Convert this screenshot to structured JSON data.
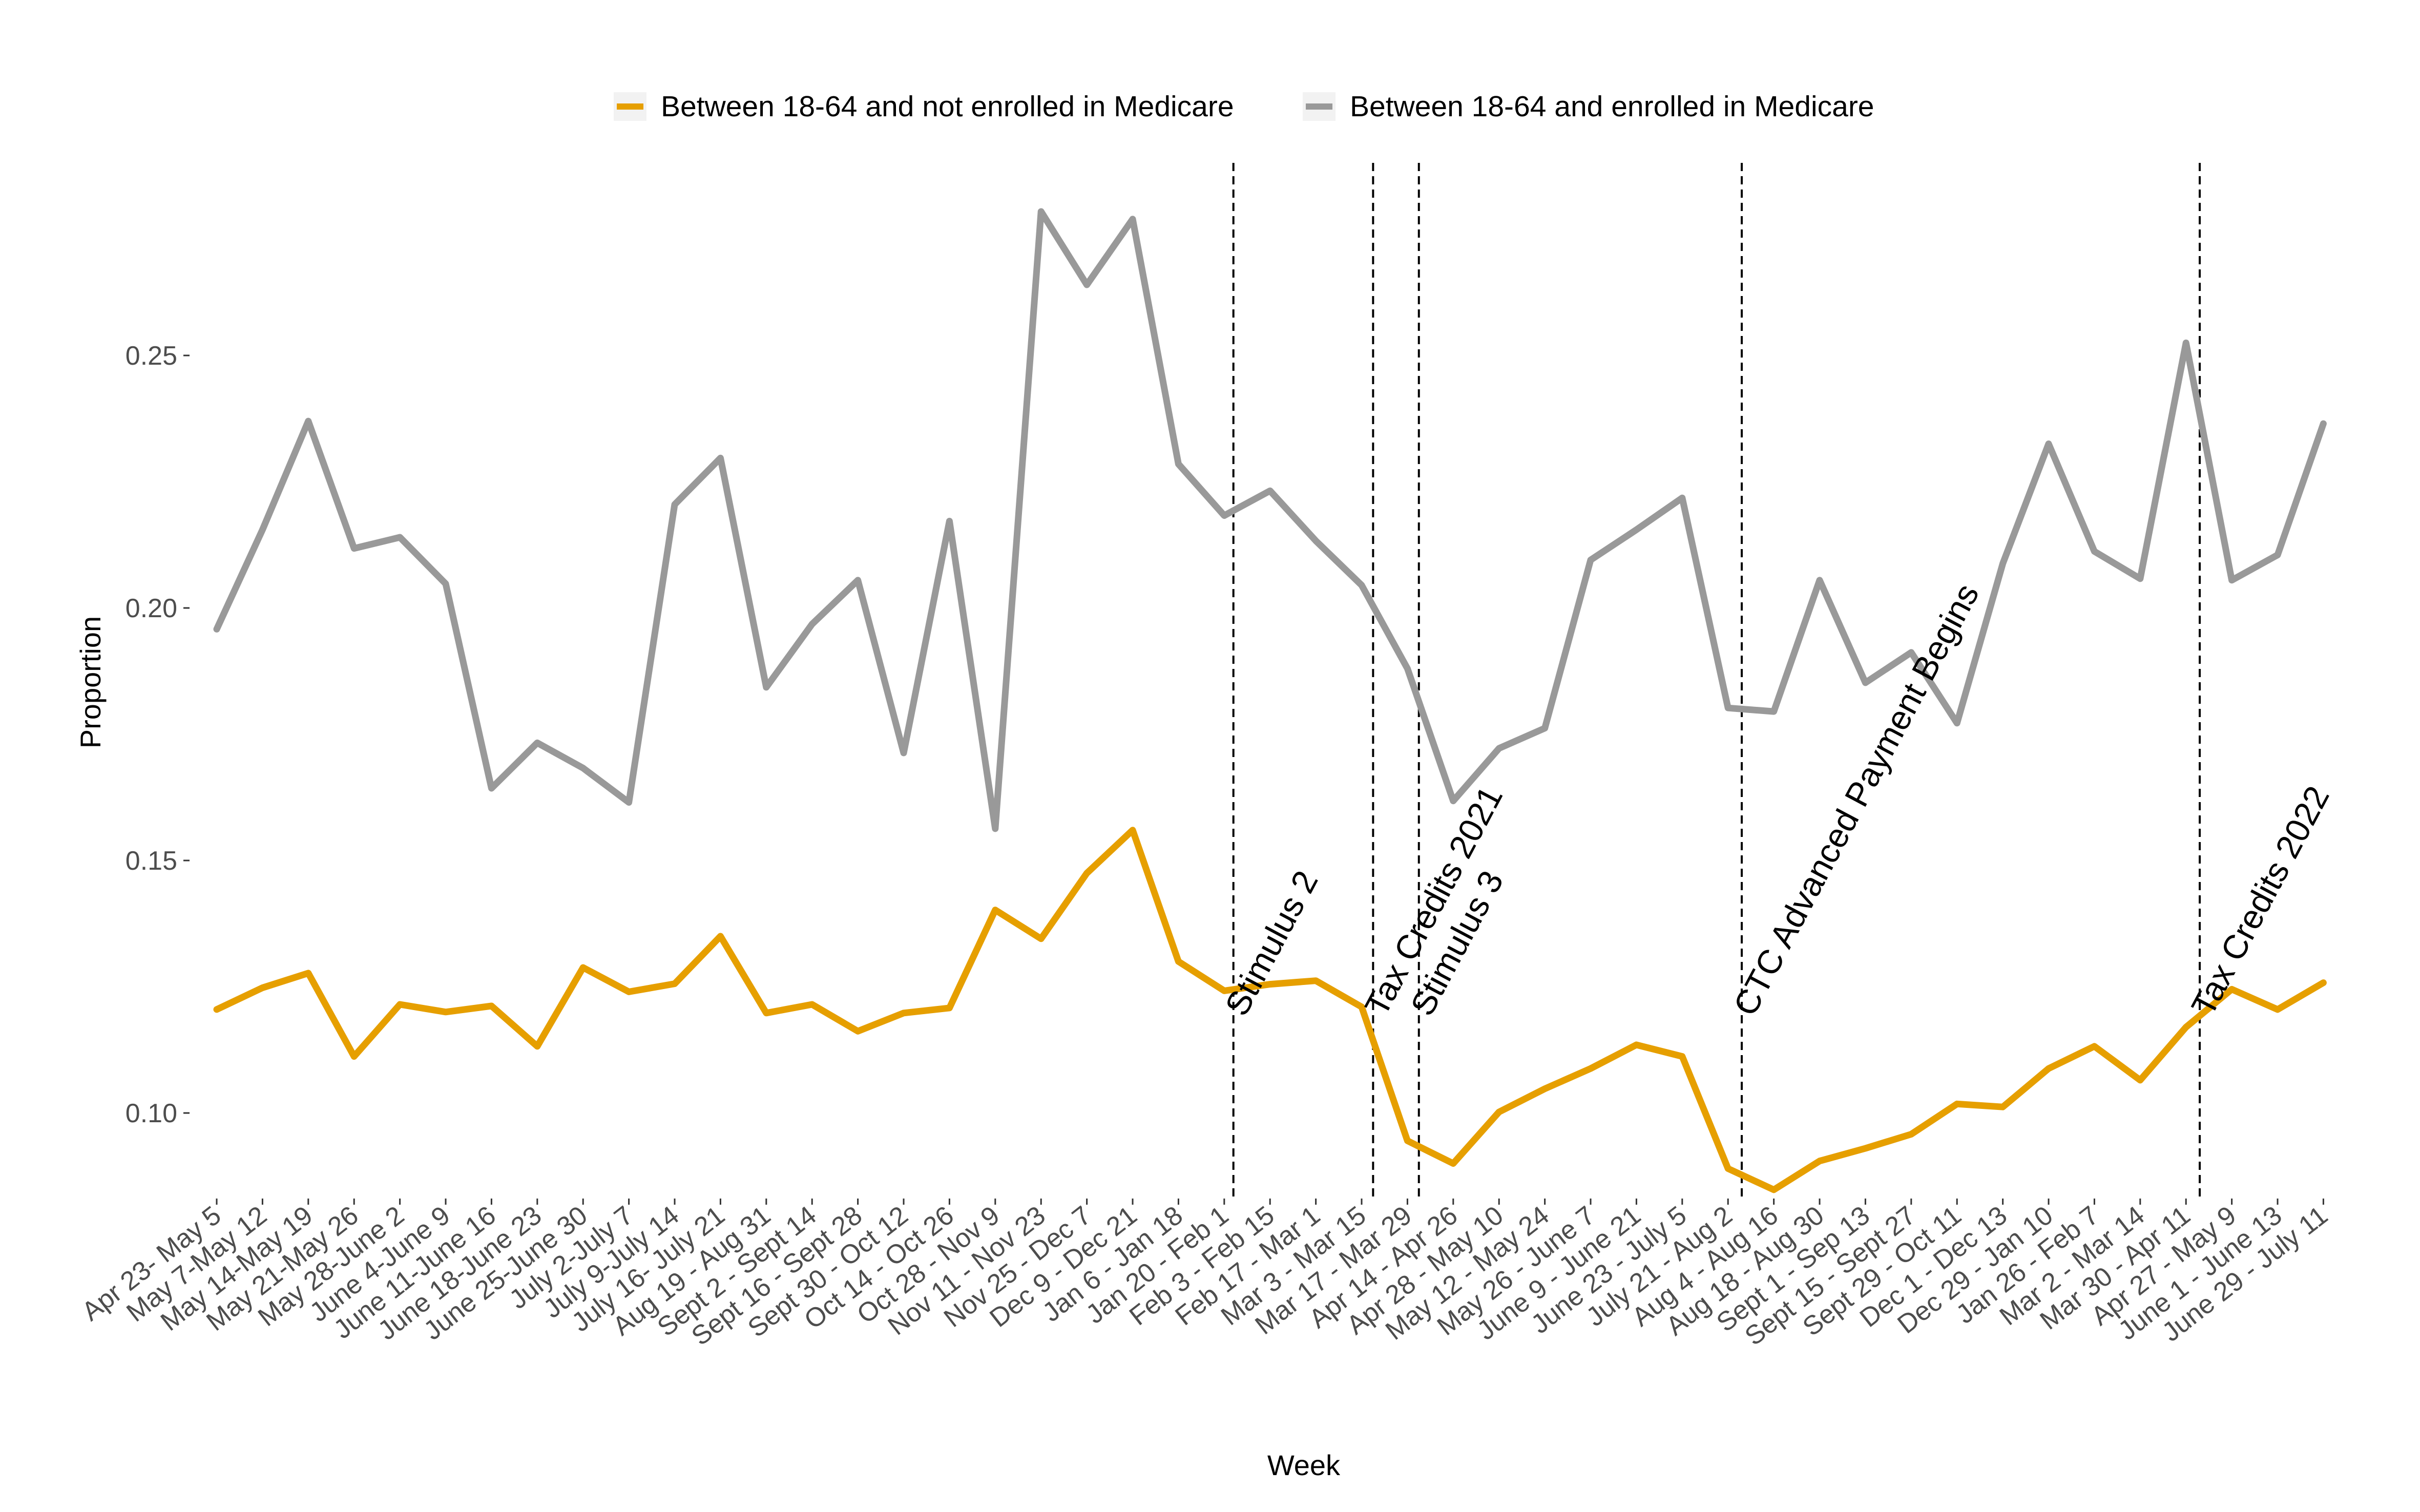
{
  "chart_data": {
    "type": "line",
    "xlabel": "Week",
    "ylabel": "Proportion",
    "ylim": [
      0.085,
      0.285
    ],
    "yticks": [
      0.1,
      0.15,
      0.2,
      0.25
    ],
    "ytick_labels": [
      "0.10",
      "0.15",
      "0.20",
      "0.25"
    ],
    "grid": false,
    "legend_position": "top",
    "categories": [
      "Apr 23- May 5",
      "May 7-May 12",
      "May 14-May 19",
      "May 21-May 26",
      "May 28-June 2",
      "June 4-June 9",
      "June 11-June 16",
      "June 18-June 23",
      "June 25-June 30",
      "July 2-July 7",
      "July 9-July 14",
      "July 16- July 21",
      "Aug 19 - Aug 31",
      "Sept 2 - Sept 14",
      "Sept 16 - Sept 28",
      "Sept 30 - Oct 12",
      "Oct 14 - Oct 26",
      "Oct 28 - Nov 9",
      "Nov 11 - Nov 23",
      "Nov 25 - Dec 7",
      "Dec 9 - Dec 21",
      "Jan 6 - Jan 18",
      "Jan 20 - Feb 1",
      "Feb 3 - Feb 15",
      "Feb 17 - Mar 1",
      "Mar 3 - Mar 15",
      "Mar 17 - Mar 29",
      "Apr 14 - Apr 26",
      "Apr 28 - May 10",
      "May 12 - May 24",
      "May 26 - June 7",
      "June 9 - June 21",
      "June 23 - July 5",
      "July 21 - Aug 2",
      "Aug 4 - Aug 16",
      "Aug 18 - Aug 30",
      "Sept 1 - Sep 13",
      "Sept 15 - Sept 27",
      "Sept 29 - Oct 11",
      "Dec 1 - Dec 13",
      "Dec 29 - Jan 10",
      "Jan 26 - Feb 7",
      "Mar 2 - Mar 14",
      "Mar 30 - Apr 11",
      "Apr 27 - May 9",
      "June 1 - June 13",
      "June 29 - July 11"
    ],
    "series": [
      {
        "name": "Between 18-64 and not enrolled in Medicare",
        "color": "#E69F00",
        "values": [
          0.1205,
          0.1248,
          0.1277,
          0.1112,
          0.1215,
          0.12,
          0.1212,
          0.1132,
          0.1288,
          0.124,
          0.1256,
          0.135,
          0.1198,
          0.1215,
          0.1162,
          0.1198,
          0.1208,
          0.1402,
          0.1345,
          0.1475,
          0.156,
          0.13,
          0.1242,
          0.1255,
          0.1262,
          0.121,
          0.0945,
          0.09,
          0.1002,
          0.1048,
          0.1088,
          0.1135,
          0.1112,
          0.089,
          0.0848,
          0.0905,
          0.093,
          0.0958,
          0.1018,
          0.1012,
          0.1088,
          0.1132,
          0.1065,
          0.117,
          0.1245,
          0.1205,
          0.1258
        ]
      },
      {
        "name": "Between 18-64 and enrolled in Medicare",
        "color": "#999999",
        "values": [
          0.1958,
          0.2155,
          0.237,
          0.2118,
          0.214,
          0.2048,
          0.1643,
          0.1733,
          0.1683,
          0.1615,
          0.2205,
          0.2297,
          0.1843,
          0.1968,
          0.2055,
          0.1713,
          0.2172,
          0.1563,
          0.2785,
          0.264,
          0.277,
          0.2285,
          0.2183,
          0.2232,
          0.2133,
          0.2045,
          0.188,
          0.1618,
          0.1722,
          0.1762,
          0.2095,
          0.2155,
          0.2218,
          0.1802,
          0.1795,
          0.2055,
          0.1852,
          0.1912,
          0.1772,
          0.2088,
          0.2325,
          0.2112,
          0.2058,
          0.2525,
          0.2055,
          0.2105,
          0.2365
        ]
      }
    ],
    "vlines": [
      {
        "category_index": 22.2,
        "label": "Stimulus 2"
      },
      {
        "category_index": 25.25,
        "label": "Tax Credits 2021"
      },
      {
        "category_index": 26.25,
        "label": "Stimulus 3"
      },
      {
        "category_index": 33.3,
        "label": "CTC Advanced Payment Begins"
      },
      {
        "category_index": 43.3,
        "label": "Tax Credits 2022"
      }
    ]
  }
}
